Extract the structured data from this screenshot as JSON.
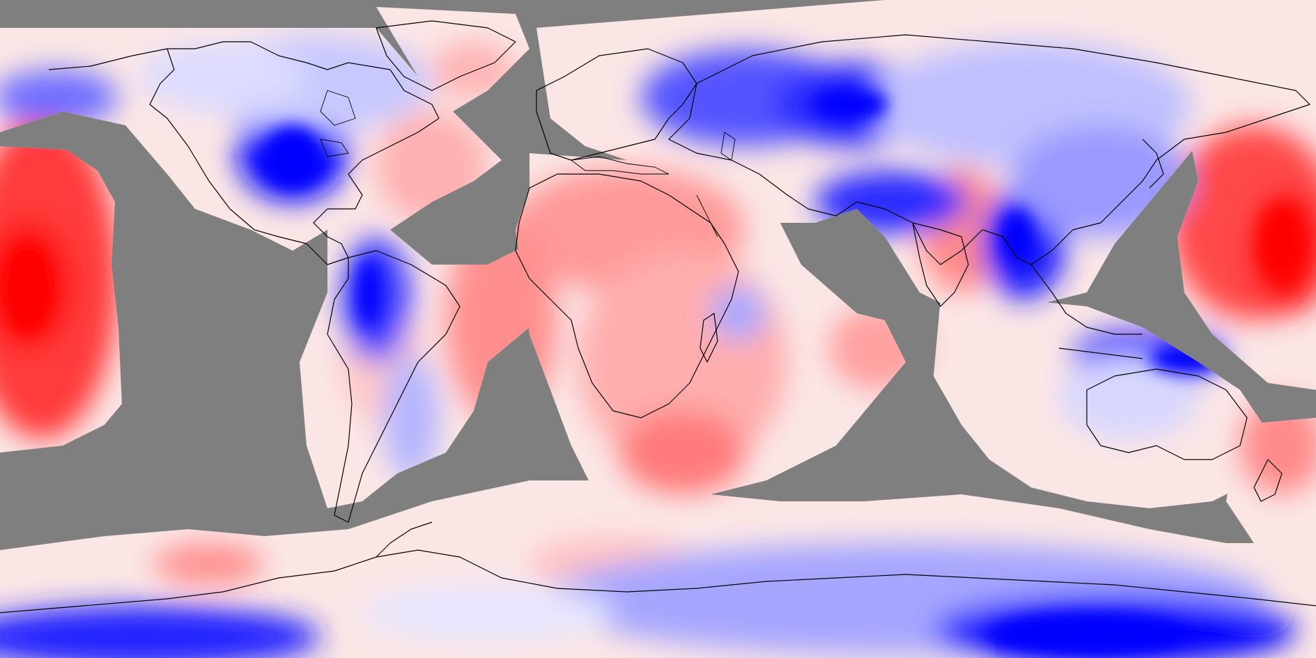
{
  "map": {
    "projection": "equirectangular",
    "field": "anomaly",
    "colormap": [
      "#0000ff",
      "#ffffff",
      "#ff0000"
    ],
    "missing_color": "#7f7f7f",
    "has_colorbar": false,
    "has_title": false
  }
}
